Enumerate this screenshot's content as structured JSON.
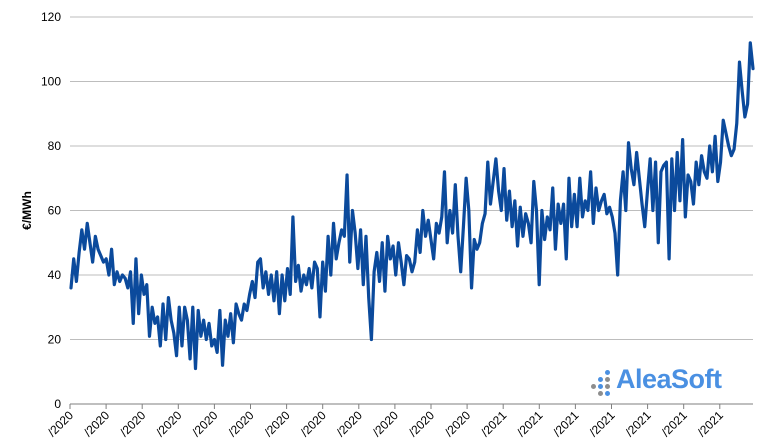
{
  "chart_data": {
    "type": "line",
    "ylabel": "€/MWh",
    "ylim": [
      0,
      120
    ],
    "yticks": [
      0,
      20,
      40,
      60,
      80,
      100,
      120
    ],
    "xtick_labels": [
      "/2020",
      "/2020",
      "/2020",
      "/2020",
      "/2020",
      "/2020",
      "/2020",
      "/2020",
      "/2020",
      "/2020",
      "/2020",
      "/2020",
      "/2021",
      "/2021",
      "/2021",
      "/2021",
      "/2021",
      "/2021",
      "/2021"
    ],
    "grid": true,
    "series": [
      {
        "color": "#0b4a9c",
        "values": [
          36,
          45,
          38,
          47,
          54,
          48,
          56,
          50,
          44,
          52,
          48,
          46,
          44,
          45,
          40,
          48,
          37,
          41,
          38,
          40,
          39,
          36,
          41,
          25,
          45,
          28,
          40,
          34,
          37,
          21,
          30,
          25,
          27,
          18,
          31,
          20,
          33,
          26,
          22,
          15,
          30,
          18,
          30,
          26,
          14,
          30,
          11,
          29,
          21,
          26,
          20,
          25,
          18,
          20,
          16,
          29,
          12,
          26,
          21,
          28,
          19,
          31,
          28,
          26,
          31,
          29,
          34,
          38,
          33,
          44,
          45,
          36,
          41,
          34,
          40,
          32,
          41,
          28,
          40,
          32,
          42,
          34,
          58,
          38,
          43,
          35,
          40,
          37,
          42,
          36,
          44,
          42,
          27,
          44,
          35,
          52,
          40,
          56,
          45,
          50,
          54,
          52,
          71,
          44,
          60,
          53,
          42,
          54,
          37,
          52,
          33,
          20,
          41,
          47,
          38,
          50,
          35,
          52,
          45,
          49,
          40,
          50,
          44,
          37,
          46,
          45,
          41,
          44,
          54,
          47,
          60,
          52,
          57,
          51,
          45,
          56,
          53,
          58,
          72,
          50,
          60,
          53,
          68,
          52,
          41,
          55,
          70,
          60,
          36,
          51,
          48,
          50,
          56,
          59,
          75,
          62,
          69,
          76,
          66,
          60,
          73,
          57,
          66,
          55,
          63,
          49,
          61,
          52,
          59,
          56,
          50,
          69,
          60,
          37,
          60,
          51,
          58,
          54,
          67,
          48,
          62,
          56,
          62,
          45,
          70,
          55,
          65,
          55,
          70,
          58,
          63,
          60,
          72,
          56,
          67,
          60,
          63,
          65,
          59,
          61,
          58,
          53,
          40,
          63,
          72,
          60,
          81,
          73,
          68,
          78,
          70,
          62,
          55,
          66,
          76,
          60,
          75,
          50,
          72,
          74,
          75,
          45,
          76,
          60,
          78,
          63,
          82,
          58,
          71,
          69,
          62,
          75,
          68,
          77,
          72,
          70,
          80,
          72,
          83,
          69,
          75,
          88,
          84,
          80,
          77,
          79,
          87,
          106,
          97,
          89,
          93,
          112,
          104
        ]
      }
    ]
  },
  "logo": {
    "text": "AleaSoft",
    "colors": {
      "gray": "#8d8d8d",
      "blue": "#4a90e2"
    }
  }
}
